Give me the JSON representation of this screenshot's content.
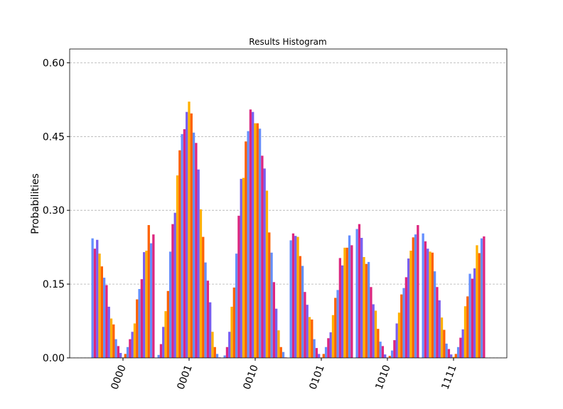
{
  "chart_data": {
    "type": "bar",
    "title": "Results Histogram",
    "ylabel": "Probabilities",
    "categories": [
      "0000",
      "0001",
      "0010",
      "0101",
      "1010",
      "1111"
    ],
    "ylim": [
      0,
      0.628
    ],
    "yticks": [
      {
        "value": 0,
        "label": "0.00"
      },
      0.15,
      {
        "value": 0.3,
        "label": "0.30"
      },
      0.45,
      {
        "value": 0.6,
        "label": "0.60"
      }
    ],
    "grid": true,
    "series": [
      {
        "color": "#648fff",
        "values": [
          0.243,
          0.006,
          0.005,
          0.239,
          0.262,
          0.253
        ]
      },
      {
        "color": "#dc267f",
        "values": [
          0.222,
          0.028,
          0.022,
          0.253,
          0.272,
          0.237
        ]
      },
      {
        "color": "#785ef0",
        "values": [
          0.24,
          0.063,
          0.053,
          0.248,
          0.244,
          0.222
        ]
      },
      {
        "color": "#ffb000",
        "values": [
          0.212,
          0.095,
          0.104,
          0.246,
          0.205,
          0.216
        ]
      },
      {
        "color": "#fe6100",
        "values": [
          0.186,
          0.136,
          0.143,
          0.207,
          0.191,
          0.214
        ]
      },
      {
        "color": "#648fff",
        "values": [
          0.163,
          0.216,
          0.212,
          0.187,
          0.195,
          0.176
        ]
      },
      {
        "color": "#dc267f",
        "values": [
          0.148,
          0.272,
          0.289,
          0.134,
          0.144,
          0.144
        ]
      },
      {
        "color": "#785ef0",
        "values": [
          0.104,
          0.295,
          0.364,
          0.108,
          0.109,
          0.117
        ]
      },
      {
        "color": "#ffb000",
        "values": [
          0.08,
          0.371,
          0.366,
          0.083,
          0.096,
          0.082
        ]
      },
      {
        "color": "#fe6100",
        "values": [
          0.068,
          0.422,
          0.44,
          0.078,
          0.059,
          0.057
        ]
      },
      {
        "color": "#648fff",
        "values": [
          0.038,
          0.455,
          0.461,
          0.038,
          0.033,
          0.029
        ]
      },
      {
        "color": "#dc267f",
        "values": [
          0.024,
          0.465,
          0.505,
          0.02,
          0.024,
          0.018
        ]
      },
      {
        "color": "#785ef0",
        "values": [
          0.01,
          0.5,
          0.5,
          0.008,
          0.007,
          0.007
        ]
      },
      {
        "color": "#ffb000",
        "values": [
          0.001,
          0.521,
          0.477,
          0.001,
          0.0,
          0.002
        ]
      },
      {
        "color": "#fe6100",
        "values": [
          0.008,
          0.497,
          0.477,
          0.008,
          0.004,
          0.008
        ]
      },
      {
        "color": "#648fff",
        "values": [
          0.022,
          0.458,
          0.466,
          0.022,
          0.015,
          0.022
        ]
      },
      {
        "color": "#dc267f",
        "values": [
          0.038,
          0.437,
          0.411,
          0.04,
          0.036,
          0.041
        ]
      },
      {
        "color": "#785ef0",
        "values": [
          0.053,
          0.383,
          0.385,
          0.052,
          0.07,
          0.058
        ]
      },
      {
        "color": "#ffb000",
        "values": [
          0.07,
          0.302,
          0.34,
          0.087,
          0.092,
          0.105
        ]
      },
      {
        "color": "#fe6100",
        "values": [
          0.119,
          0.246,
          0.255,
          0.122,
          0.129,
          0.125
        ]
      },
      {
        "color": "#648fff",
        "values": [
          0.14,
          0.194,
          0.214,
          0.138,
          0.142,
          0.171
        ]
      },
      {
        "color": "#dc267f",
        "values": [
          0.16,
          0.157,
          0.154,
          0.203,
          0.164,
          0.161
        ]
      },
      {
        "color": "#785ef0",
        "values": [
          0.215,
          0.113,
          0.1,
          0.188,
          0.202,
          0.182
        ]
      },
      {
        "color": "#ffb000",
        "values": [
          0.218,
          0.053,
          0.056,
          0.224,
          0.218,
          0.229
        ]
      },
      {
        "color": "#fe6100",
        "values": [
          0.27,
          0.022,
          0.022,
          0.224,
          0.245,
          0.213
        ]
      },
      {
        "color": "#648fff",
        "values": [
          0.233,
          0.008,
          0.012,
          0.249,
          0.251,
          0.243
        ]
      },
      {
        "color": "#dc267f",
        "values": [
          0.251,
          0.001,
          0.001,
          0.229,
          0.27,
          0.247
        ]
      }
    ]
  }
}
